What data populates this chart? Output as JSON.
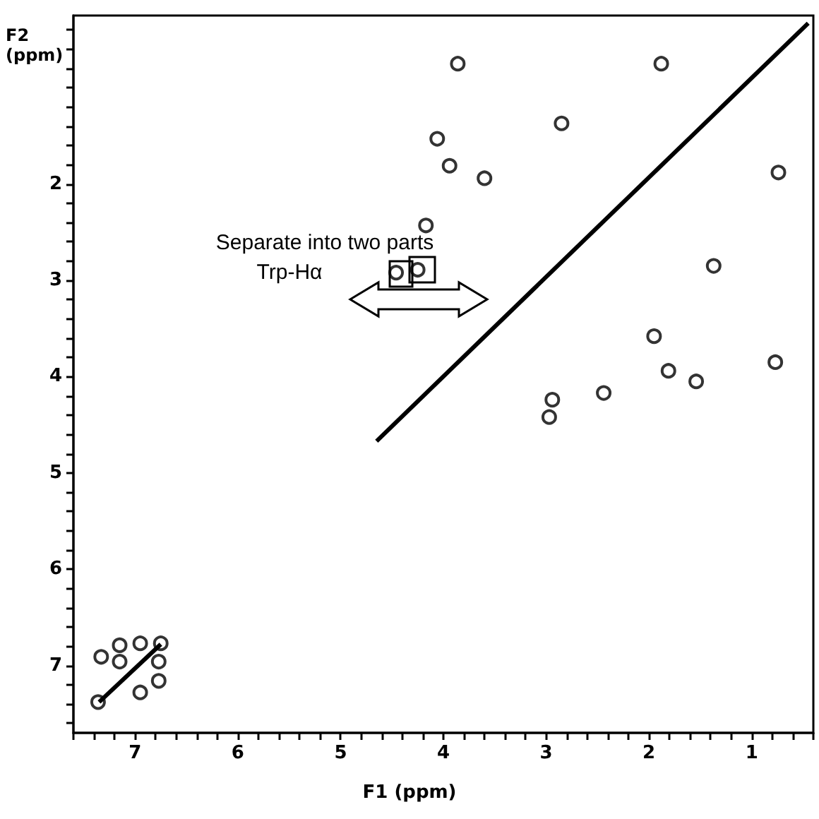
{
  "chart_data": {
    "type": "scatter",
    "xlabel": "F1 (ppm)",
    "ylabel": "F2 (ppm)",
    "xlim": [
      7.6,
      0.4
    ],
    "ylim": [
      7.7,
      0.25
    ],
    "xticks": [
      {
        "value": 7.6,
        "label": null
      },
      {
        "value": 7.4,
        "label": null
      },
      {
        "value": 7.2,
        "label": null
      },
      7,
      {
        "value": 6.8,
        "label": null
      },
      {
        "value": 6.6,
        "label": null
      },
      {
        "value": 6.4,
        "label": null
      },
      {
        "value": 6.2,
        "label": null
      },
      6,
      {
        "value": 5.8,
        "label": null
      },
      {
        "value": 5.6,
        "label": null
      },
      {
        "value": 5.4,
        "label": null
      },
      {
        "value": 5.2,
        "label": null
      },
      5,
      {
        "value": 4.8,
        "label": null
      },
      {
        "value": 4.6,
        "label": null
      },
      {
        "value": 4.4,
        "label": null
      },
      {
        "value": 4.2,
        "label": null
      },
      4,
      {
        "value": 3.8,
        "label": null
      },
      {
        "value": 3.6,
        "label": null
      },
      {
        "value": 3.4,
        "label": null
      },
      {
        "value": 3.2,
        "label": null
      },
      3,
      {
        "value": 2.8,
        "label": null
      },
      {
        "value": 2.6,
        "label": null
      },
      {
        "value": 2.4,
        "label": null
      },
      {
        "value": 2.2,
        "label": null
      },
      2,
      {
        "value": 1.8,
        "label": null
      },
      {
        "value": 1.6,
        "label": null
      },
      {
        "value": 1.4,
        "label": null
      },
      {
        "value": 1.2,
        "label": null
      },
      1,
      {
        "value": 0.8,
        "label": null
      },
      {
        "value": 0.6,
        "label": null
      },
      {
        "value": 0.4,
        "label": null
      }
    ],
    "yticks": [
      {
        "value": 0.4,
        "label": null
      },
      {
        "value": 0.6,
        "label": null
      },
      {
        "value": 0.8,
        "label": null
      },
      {
        "value": 1,
        "label": null
      },
      {
        "value": 1.2,
        "label": null
      },
      {
        "value": 1.4,
        "label": null
      },
      {
        "value": 1.6,
        "label": null
      },
      {
        "value": 1.8,
        "label": null
      },
      2,
      {
        "value": 2.2,
        "label": null
      },
      {
        "value": 2.4,
        "label": null
      },
      {
        "value": 2.6,
        "label": null
      },
      {
        "value": 2.8,
        "label": null
      },
      3,
      {
        "value": 3.2,
        "label": null
      },
      {
        "value": 3.4,
        "label": null
      },
      {
        "value": 3.6,
        "label": null
      },
      {
        "value": 3.8,
        "label": null
      },
      4,
      {
        "value": 4.2,
        "label": null
      },
      {
        "value": 4.4,
        "label": null
      },
      {
        "value": 4.6,
        "label": null
      },
      {
        "value": 4.8,
        "label": null
      },
      5,
      {
        "value": 5.2,
        "label": null
      },
      {
        "value": 5.4,
        "label": null
      },
      {
        "value": 5.6,
        "label": null
      },
      {
        "value": 5.8,
        "label": null
      },
      6,
      {
        "value": 6.2,
        "label": null
      },
      {
        "value": 6.4,
        "label": null
      },
      {
        "value": 6.6,
        "label": null
      },
      {
        "value": 6.8,
        "label": null
      },
      7,
      {
        "value": 7.2,
        "label": null
      },
      {
        "value": 7.4,
        "label": null
      },
      {
        "value": 7.6,
        "label": null
      }
    ],
    "grid": false,
    "marker": "circle",
    "series": [
      {
        "type": "line",
        "color": "#000000",
        "marker": "none",
        "x": [
          7.35,
          6.75,
          6.7,
          4.65,
          0.45
        ],
        "values": [
          7.38,
          6.78,
          null,
          4.67,
          0.33
        ]
      },
      {
        "color": "#000000",
        "x": [
          3.86,
          1.88,
          2.85,
          4.06,
          3.94,
          3.6,
          0.74,
          4.17,
          4.46,
          4.25,
          1.37,
          1.95,
          1.81,
          1.54,
          0.77,
          2.44,
          2.94,
          2.97,
          7.15,
          6.95,
          6.75,
          7.33,
          6.77,
          6.77,
          6.95,
          7.36,
          7.15
        ],
        "values": [
          0.75,
          0.75,
          1.37,
          1.53,
          1.81,
          1.94,
          1.88,
          2.43,
          2.92,
          2.89,
          2.85,
          3.58,
          3.94,
          4.05,
          3.85,
          4.17,
          4.24,
          4.42,
          6.79,
          6.77,
          6.77,
          6.91,
          6.96,
          7.16,
          7.28,
          7.38,
          6.96
        ]
      }
    ],
    "annotations": [
      "Separate into two parts",
      "Trp-Hα"
    ]
  }
}
